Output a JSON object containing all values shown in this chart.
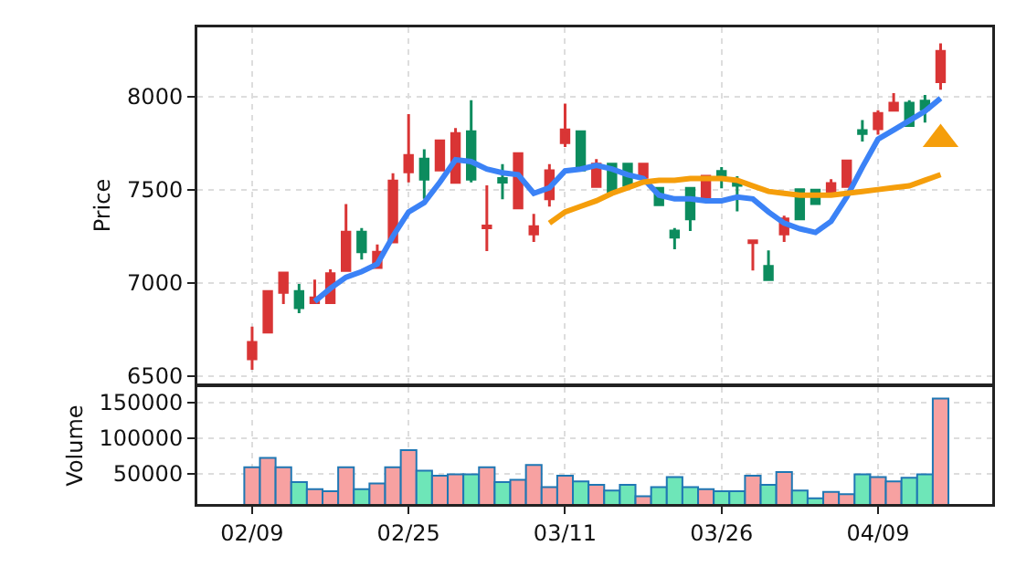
{
  "chart_data": [
    {
      "type": "candlestick",
      "ylabel": "Price",
      "categories": [
        null,
        null,
        null,
        null,
        null,
        null,
        null,
        null,
        null,
        null,
        null,
        null,
        null,
        null,
        null,
        null,
        null,
        null,
        null,
        null,
        null,
        null,
        null,
        null,
        null,
        null,
        null,
        null,
        null,
        null,
        null,
        null,
        null,
        null,
        null,
        null,
        null,
        null,
        null,
        null,
        null,
        null,
        null,
        null,
        null
      ],
      "ylim": [
        6460,
        8370
      ],
      "yticks": [
        6500,
        7000,
        7500,
        8000
      ],
      "grid": true,
      "tick_labels": "y",
      "marker": "none",
      "line_style": "solid",
      "series": [
        {
          "type": "candlestick",
          "ohlc": [
            [
              6592,
              6765,
              6533,
              6680
            ],
            [
              6736,
              6960,
              6730,
              6954
            ],
            [
              6948,
              7055,
              6886,
              7052
            ],
            [
              6954,
              6994,
              6837,
              6866
            ],
            [
              6893,
              7017,
              6890,
              6919
            ],
            [
              6893,
              7072,
              6890,
              7049
            ],
            [
              7066,
              7422,
              7060,
              7272
            ],
            [
              7272,
              7294,
              7125,
              7167
            ],
            [
              7082,
              7206,
              7078,
              7164
            ],
            [
              7219,
              7588,
              7215,
              7546
            ],
            [
              7595,
              7905,
              7539,
              7683
            ],
            [
              7663,
              7716,
              7451,
              7556
            ],
            [
              7605,
              7765,
              7600,
              7762
            ],
            [
              7539,
              7830,
              7535,
              7801
            ],
            [
              7811,
              7980,
              7539,
              7556
            ],
            [
              7295,
              7523,
              7170,
              7305
            ],
            [
              7560,
              7637,
              7448,
              7540
            ],
            [
              7402,
              7700,
              7400,
              7693
            ],
            [
              7262,
              7370,
              7219,
              7301
            ],
            [
              7451,
              7637,
              7409,
              7601
            ],
            [
              7752,
              7961,
              7729,
              7820
            ],
            [
              7811,
              7815,
              7600,
              7605
            ],
            [
              7517,
              7663,
              7515,
              7637
            ],
            [
              7637,
              7640,
              7490,
              7490
            ],
            [
              7637,
              7640,
              7523,
              7523
            ],
            [
              7566,
              7640,
              7566,
              7637
            ],
            [
              7507,
              7510,
              7419,
              7419
            ],
            [
              7278,
              7294,
              7180,
              7245
            ],
            [
              7507,
              7510,
              7278,
              7343
            ],
            [
              7458,
              7572,
              7455,
              7572
            ],
            [
              7598,
              7621,
              7507,
              7566
            ],
            [
              7539,
              7572,
              7383,
              7523
            ],
            [
              7215,
              7225,
              7066,
              7225
            ],
            [
              7088,
              7174,
              7015,
              7017
            ],
            [
              7262,
              7360,
              7219,
              7343
            ],
            [
              7500,
              7500,
              7340,
              7343
            ],
            [
              7497,
              7500,
              7425,
              7425
            ],
            [
              7484,
              7556,
              7484,
              7533
            ],
            [
              7517,
              7654,
              7517,
              7654
            ],
            [
              7817,
              7873,
              7758,
              7801
            ],
            [
              7827,
              7925,
              7794,
              7909
            ],
            [
              7925,
              8017,
              7920,
              7964
            ],
            [
              7964,
              7980,
              7843,
              7843
            ],
            [
              7974,
              8007,
              7860,
              7931
            ],
            [
              8078,
              8284,
              8036,
              8242
            ]
          ],
          "colors": [
            "#d93535",
            "#d93535",
            "#d93535",
            "#0c8c5e",
            "#d93535",
            "#d93535",
            "#d93535",
            "#0c8c5e",
            "#d93535",
            "#d93535",
            "#d93535",
            "#0c8c5e",
            "#d93535",
            "#d93535",
            "#0c8c5e",
            "#d93535",
            "#0c8c5e",
            "#d93535",
            "#d93535",
            "#d93535",
            "#d93535",
            "#0c8c5e",
            "#d93535",
            "#0c8c5e",
            "#0c8c5e",
            "#d93535",
            "#0c8c5e",
            "#0c8c5e",
            "#0c8c5e",
            "#d93535",
            "#0c8c5e",
            "#0c8c5e",
            "#d93535",
            "#0c8c5e",
            "#d93535",
            "#0c8c5e",
            "#0c8c5e",
            "#d93535",
            "#d93535",
            "#0c8c5e",
            "#d93535",
            "#d93535",
            "#0c8c5e",
            "#0c8c5e",
            "#d93535"
          ]
        },
        {
          "type": "line",
          "color": "#3b82f6",
          "values": [
            null,
            null,
            null,
            null,
            6900,
            6970,
            7030,
            7060,
            7100,
            7250,
            7380,
            7430,
            7540,
            7660,
            7650,
            7610,
            7590,
            7580,
            7480,
            7510,
            7600,
            7610,
            7630,
            7610,
            7580,
            7560,
            7470,
            7450,
            7450,
            7440,
            7440,
            7460,
            7450,
            7380,
            7320,
            7290,
            7270,
            7330,
            7460,
            7620,
            7770,
            7820,
            7870,
            7920,
            7990
          ]
        },
        {
          "type": "line",
          "color": "#f59e0b",
          "values": [
            null,
            null,
            null,
            null,
            null,
            null,
            null,
            null,
            null,
            null,
            null,
            null,
            null,
            null,
            null,
            null,
            null,
            null,
            null,
            7320,
            7380,
            7410,
            7440,
            7480,
            7510,
            7540,
            7550,
            7550,
            7560,
            7560,
            7560,
            7550,
            7520,
            7490,
            7480,
            7470,
            7470,
            7470,
            7480,
            7490,
            7500,
            7510,
            7520,
            7550,
            7580
          ]
        },
        {
          "type": "scatter",
          "marker": "triangle",
          "color": "#f59e0b",
          "values": [
            null,
            null,
            null,
            null,
            null,
            null,
            null,
            null,
            null,
            null,
            null,
            null,
            null,
            null,
            null,
            null,
            null,
            null,
            null,
            null,
            null,
            null,
            null,
            null,
            null,
            null,
            null,
            null,
            null,
            null,
            null,
            null,
            null,
            null,
            null,
            null,
            null,
            null,
            null,
            null,
            null,
            null,
            null,
            null,
            7770
          ]
        }
      ]
    },
    {
      "type": "bar",
      "ylabel": "Volume",
      "categories": [
        "02/09",
        null,
        null,
        null,
        null,
        null,
        null,
        null,
        null,
        null,
        "02/25",
        null,
        null,
        null,
        null,
        null,
        null,
        null,
        null,
        null,
        "03/11",
        null,
        null,
        null,
        null,
        null,
        null,
        null,
        null,
        null,
        "03/26",
        null,
        null,
        null,
        null,
        null,
        null,
        null,
        null,
        null,
        "04/09",
        null,
        null,
        null,
        null
      ],
      "ylim": [
        7000,
        172000
      ],
      "yticks": [
        50000,
        100000,
        150000
      ],
      "grid": true,
      "values": [
        59000,
        72000,
        59000,
        38000,
        28000,
        25000,
        59000,
        28000,
        36000,
        59000,
        83000,
        54000,
        47000,
        49000,
        49000,
        59000,
        38000,
        41000,
        62000,
        31000,
        47000,
        39000,
        34000,
        26000,
        34000,
        18000,
        31000,
        45000,
        31000,
        28000,
        25000,
        25000,
        47000,
        34000,
        52000,
        26000,
        15000,
        24000,
        21000,
        49000,
        45000,
        39000,
        44000,
        49000,
        156000
      ],
      "colors": [
        "#f7a1a1",
        "#f7a1a1",
        "#f7a1a1",
        "#6ee6b8",
        "#f7a1a1",
        "#f7a1a1",
        "#f7a1a1",
        "#6ee6b8",
        "#f7a1a1",
        "#f7a1a1",
        "#f7a1a1",
        "#6ee6b8",
        "#f7a1a1",
        "#f7a1a1",
        "#6ee6b8",
        "#f7a1a1",
        "#6ee6b8",
        "#f7a1a1",
        "#f7a1a1",
        "#f7a1a1",
        "#f7a1a1",
        "#6ee6b8",
        "#f7a1a1",
        "#6ee6b8",
        "#6ee6b8",
        "#f7a1a1",
        "#6ee6b8",
        "#6ee6b8",
        "#6ee6b8",
        "#f7a1a1",
        "#6ee6b8",
        "#6ee6b8",
        "#f7a1a1",
        "#6ee6b8",
        "#f7a1a1",
        "#6ee6b8",
        "#6ee6b8",
        "#f7a1a1",
        "#f7a1a1",
        "#6ee6b8",
        "#f7a1a1",
        "#f7a1a1",
        "#6ee6b8",
        "#6ee6b8",
        "#f7a1a1"
      ]
    }
  ]
}
